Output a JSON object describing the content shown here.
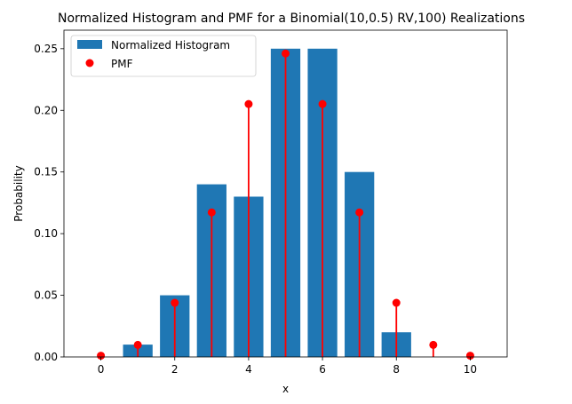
{
  "chart_data": {
    "type": "bar",
    "title": "Normalized Histogram and PMF for a Binomial(10,0.5) RV,100) Realizations",
    "xlabel": "x",
    "ylabel": "Probability",
    "xlim": [
      -1,
      11
    ],
    "ylim": [
      0,
      0.265
    ],
    "xticks": [
      0,
      2,
      4,
      6,
      8,
      10
    ],
    "yticks": [
      0.0,
      0.05,
      0.1,
      0.15,
      0.2,
      0.25
    ],
    "ytick_labels": [
      "0.00",
      "0.05",
      "0.10",
      "0.15",
      "0.20",
      "0.25"
    ],
    "grid": false,
    "legend_position": "top-left",
    "series": [
      {
        "name": "Normalized Histogram",
        "kind": "bar",
        "color": "#1f77b4",
        "x": [
          0,
          1,
          2,
          3,
          4,
          5,
          6,
          7,
          8,
          9,
          10
        ],
        "values": [
          0.0,
          0.01,
          0.05,
          0.14,
          0.13,
          0.25,
          0.25,
          0.15,
          0.02,
          0.0,
          0.0
        ]
      },
      {
        "name": "PMF",
        "kind": "stem",
        "color": "#ff0000",
        "x": [
          0,
          1,
          2,
          3,
          4,
          5,
          6,
          7,
          8,
          9,
          10
        ],
        "values": [
          0.001,
          0.0098,
          0.0439,
          0.1172,
          0.2051,
          0.2461,
          0.2051,
          0.1172,
          0.0439,
          0.0098,
          0.001
        ]
      }
    ]
  }
}
